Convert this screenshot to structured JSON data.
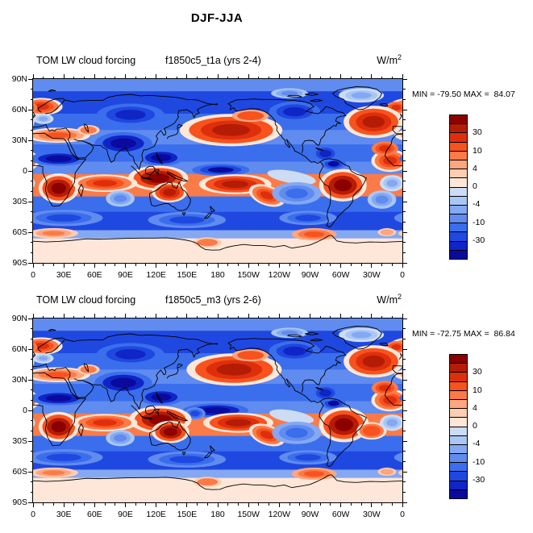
{
  "page_title": "DJF-JJA",
  "panels": [
    {
      "variable": "TOM LW cloud forcing",
      "run": "f1850c5_t1a (yrs 2-4)",
      "units_base": "W/m",
      "units_sup": "2",
      "stats_label": "MIN = -79.50 MAX =  84.07",
      "min": "-79.50",
      "max": "84.07"
    },
    {
      "variable": "TOM LW cloud forcing",
      "run": "f1850c5_m3 (yrs 2-6)",
      "units_base": "W/m",
      "units_sup": "2",
      "stats_label": "MIN = -72.75 MAX =  86.84",
      "min": "-72.75",
      "max": "86.84"
    }
  ],
  "chart_data": {
    "type": "heatmap",
    "subtype": "filled-contour-world-map",
    "figure_title": "DJF-JJA",
    "units": "W/m^2",
    "projection": "equirectangular, lon 0E-360E left to right, lat 90N top to 90S bottom",
    "coastlines": true,
    "x_tick_labels": [
      "0",
      "30E",
      "60E",
      "90E",
      "120E",
      "150E",
      "180",
      "150W",
      "120W",
      "90W",
      "60W",
      "30W",
      "0"
    ],
    "y_tick_labels": [
      "90N",
      "60N",
      "30N",
      "0",
      "30S",
      "60S",
      "90S"
    ],
    "x_major_step_deg": 30,
    "x_minor_step_deg": 10,
    "y_major_step_deg": 30,
    "y_minor_step_deg": 10,
    "contour_levels": [
      -40,
      -30,
      -20,
      -10,
      -6,
      -4,
      -2,
      0,
      2,
      4,
      6,
      10,
      20,
      30,
      40
    ],
    "palette": [
      "#0a0a9e",
      "#1025c5",
      "#1f48e0",
      "#3b6eec",
      "#608bef",
      "#85a8f2",
      "#a9c6f5",
      "#ccdcf5",
      "#fee7d8",
      "#fecdb2",
      "#fea67e",
      "#fb7b48",
      "#f8521e",
      "#de2f0d",
      "#b51c06",
      "#8c0000"
    ],
    "colorbar_labels": [
      "30",
      "10",
      "4",
      "0",
      "-4",
      "-10",
      "-30"
    ],
    "colorbar_labeled_boundaries": [
      30,
      10,
      4,
      0,
      -4,
      -10,
      -30
    ],
    "panels": [
      {
        "name": "f1850c5_t1a (yrs 2-4)",
        "min": -79.5,
        "max": 84.07,
        "zonal_bands": [
          [
            90,
            78,
            -8
          ],
          [
            78,
            56,
            -26
          ],
          [
            56,
            40,
            -14
          ],
          [
            40,
            26,
            -8
          ],
          [
            26,
            9,
            -18
          ],
          [
            9,
            -3,
            -7
          ],
          [
            -3,
            -25,
            7
          ],
          [
            -25,
            -40,
            -14
          ],
          [
            -40,
            -58,
            -24
          ],
          [
            -58,
            -66,
            -4
          ],
          [
            -66,
            -90,
            1
          ]
        ],
        "anomaly_blobs": [
          [
            8,
            63,
            17,
            7,
            26,
            1,
            0
          ],
          [
            354,
            62,
            10,
            6,
            24,
            0,
            0
          ],
          [
            24,
            35,
            26,
            6,
            14,
            1,
            0
          ],
          [
            54,
            40,
            11,
            5,
            10,
            0,
            0
          ],
          [
            193,
            40,
            41,
            13,
            35,
            1,
            0
          ],
          [
            212,
            54,
            18,
            6,
            15,
            0,
            0
          ],
          [
            332,
            48,
            24,
            13,
            33,
            1,
            0
          ],
          [
            348,
            10,
            15,
            9,
            28,
            1,
            0
          ],
          [
            343,
            22,
            13,
            7,
            22,
            0,
            0
          ],
          [
            10,
            51,
            10,
            5,
            -5,
            0,
            0
          ],
          [
            88,
            27,
            28,
            11,
            -52,
            0,
            0
          ],
          [
            25,
            12,
            28,
            7,
            -48,
            0,
            0
          ],
          [
            125,
            13,
            22,
            8,
            -45,
            0,
            0
          ],
          [
            183,
            1,
            28,
            6,
            -42,
            0,
            0
          ],
          [
            293,
            7,
            12,
            6,
            -40,
            0,
            0
          ],
          [
            285,
            17,
            13,
            8,
            -36,
            0,
            0
          ],
          [
            95,
            55,
            33,
            11,
            -33,
            0,
            0
          ],
          [
            255,
            58,
            25,
            10,
            -30,
            0,
            0
          ],
          [
            252,
            -6,
            24,
            6,
            -1,
            0,
            10
          ],
          [
            25,
            -17,
            16,
            12,
            48,
            1,
            0
          ],
          [
            122,
            -7,
            24,
            10,
            48,
            1,
            0
          ],
          [
            133,
            -21,
            14,
            8,
            32,
            1,
            0
          ],
          [
            197,
            -13,
            29,
            8,
            38,
            1,
            0
          ],
          [
            228,
            -24,
            15,
            8,
            26,
            1,
            20
          ],
          [
            302,
            -14,
            19,
            13,
            50,
            1,
            0
          ],
          [
            70,
            -12,
            26,
            7,
            22,
            1,
            0
          ],
          [
            85,
            -27,
            14,
            8,
            -8,
            0,
            0
          ],
          [
            257,
            -22,
            24,
            11,
            -14,
            0,
            0
          ],
          [
            340,
            -28,
            14,
            9,
            -7,
            0,
            0
          ],
          [
            350,
            -12,
            12,
            8,
            -4,
            0,
            0
          ],
          [
            30,
            -46,
            38,
            8,
            -26,
            0,
            0
          ],
          [
            150,
            -48,
            38,
            8,
            -26,
            0,
            0
          ],
          [
            268,
            -46,
            28,
            7,
            -22,
            0,
            0
          ],
          [
            20,
            -61,
            24,
            5,
            8,
            0,
            0
          ],
          [
            170,
            -70,
            14,
            5,
            10,
            0,
            0
          ],
          [
            274,
            -62,
            22,
            6,
            12,
            0,
            0
          ],
          [
            345,
            -60,
            9,
            4,
            6,
            0,
            0
          ],
          [
            320,
            74,
            22,
            7,
            -4,
            0,
            0
          ],
          [
            250,
            76,
            18,
            5,
            -6,
            0,
            0
          ]
        ]
      },
      {
        "name": "f1850c5_m3 (yrs 2-6)",
        "min": -72.75,
        "max": 86.84,
        "zonal_bands": [
          [
            90,
            78,
            -8
          ],
          [
            78,
            56,
            -26
          ],
          [
            56,
            40,
            -14
          ],
          [
            40,
            26,
            -8
          ],
          [
            26,
            9,
            -18
          ],
          [
            9,
            -3,
            -7
          ],
          [
            -3,
            -25,
            7
          ],
          [
            -25,
            -40,
            -14
          ],
          [
            -40,
            -58,
            -24
          ],
          [
            -58,
            -66,
            -4
          ],
          [
            -66,
            -90,
            1
          ]
        ],
        "anomaly_blobs": [
          [
            8,
            63,
            17,
            7,
            26,
            1,
            0
          ],
          [
            354,
            62,
            10,
            6,
            24,
            0,
            0
          ],
          [
            24,
            35,
            26,
            6,
            14,
            1,
            0
          ],
          [
            54,
            40,
            11,
            5,
            10,
            0,
            0
          ],
          [
            196,
            40,
            38,
            13,
            33,
            1,
            0
          ],
          [
            212,
            54,
            18,
            6,
            15,
            0,
            0
          ],
          [
            332,
            48,
            24,
            13,
            33,
            1,
            0
          ],
          [
            348,
            10,
            15,
            9,
            28,
            1,
            0
          ],
          [
            343,
            22,
            13,
            7,
            22,
            0,
            0
          ],
          [
            10,
            51,
            10,
            5,
            -5,
            0,
            0
          ],
          [
            88,
            27,
            28,
            11,
            -52,
            0,
            0
          ],
          [
            25,
            12,
            28,
            7,
            -48,
            0,
            0
          ],
          [
            125,
            13,
            22,
            8,
            -45,
            0,
            0
          ],
          [
            178,
            0,
            32,
            7,
            -45,
            0,
            0
          ],
          [
            293,
            7,
            12,
            6,
            -40,
            0,
            0
          ],
          [
            285,
            17,
            13,
            8,
            -36,
            0,
            0
          ],
          [
            95,
            55,
            33,
            11,
            -33,
            0,
            0
          ],
          [
            255,
            58,
            25,
            10,
            -30,
            0,
            0
          ],
          [
            158,
            -3,
            10,
            6,
            -25,
            0,
            0
          ],
          [
            252,
            -6,
            22,
            6,
            -1,
            0,
            10
          ],
          [
            25,
            -16,
            16,
            12,
            46,
            1,
            0
          ],
          [
            124,
            -9,
            25,
            11,
            52,
            1,
            0
          ],
          [
            134,
            -21,
            15,
            9,
            45,
            1,
            0
          ],
          [
            200,
            -12,
            28,
            8,
            36,
            1,
            0
          ],
          [
            228,
            -24,
            15,
            8,
            26,
            1,
            20
          ],
          [
            303,
            -14,
            20,
            14,
            52,
            1,
            0
          ],
          [
            330,
            -20,
            12,
            7,
            20,
            1,
            0
          ],
          [
            70,
            -12,
            26,
            7,
            22,
            1,
            0
          ],
          [
            85,
            -27,
            14,
            8,
            -8,
            0,
            0
          ],
          [
            257,
            -22,
            24,
            11,
            -14,
            0,
            0
          ],
          [
            350,
            -12,
            12,
            8,
            -4,
            0,
            0
          ],
          [
            30,
            -46,
            38,
            8,
            -26,
            0,
            0
          ],
          [
            150,
            -48,
            38,
            8,
            -26,
            0,
            0
          ],
          [
            268,
            -46,
            28,
            7,
            -22,
            0,
            0
          ],
          [
            20,
            -61,
            24,
            5,
            8,
            0,
            0
          ],
          [
            170,
            -70,
            14,
            5,
            10,
            0,
            0
          ],
          [
            274,
            -62,
            22,
            6,
            12,
            0,
            0
          ],
          [
            345,
            -60,
            9,
            4,
            6,
            0,
            0
          ],
          [
            320,
            74,
            22,
            7,
            -4,
            0,
            0
          ],
          [
            250,
            76,
            18,
            5,
            -6,
            0,
            0
          ]
        ]
      }
    ]
  }
}
